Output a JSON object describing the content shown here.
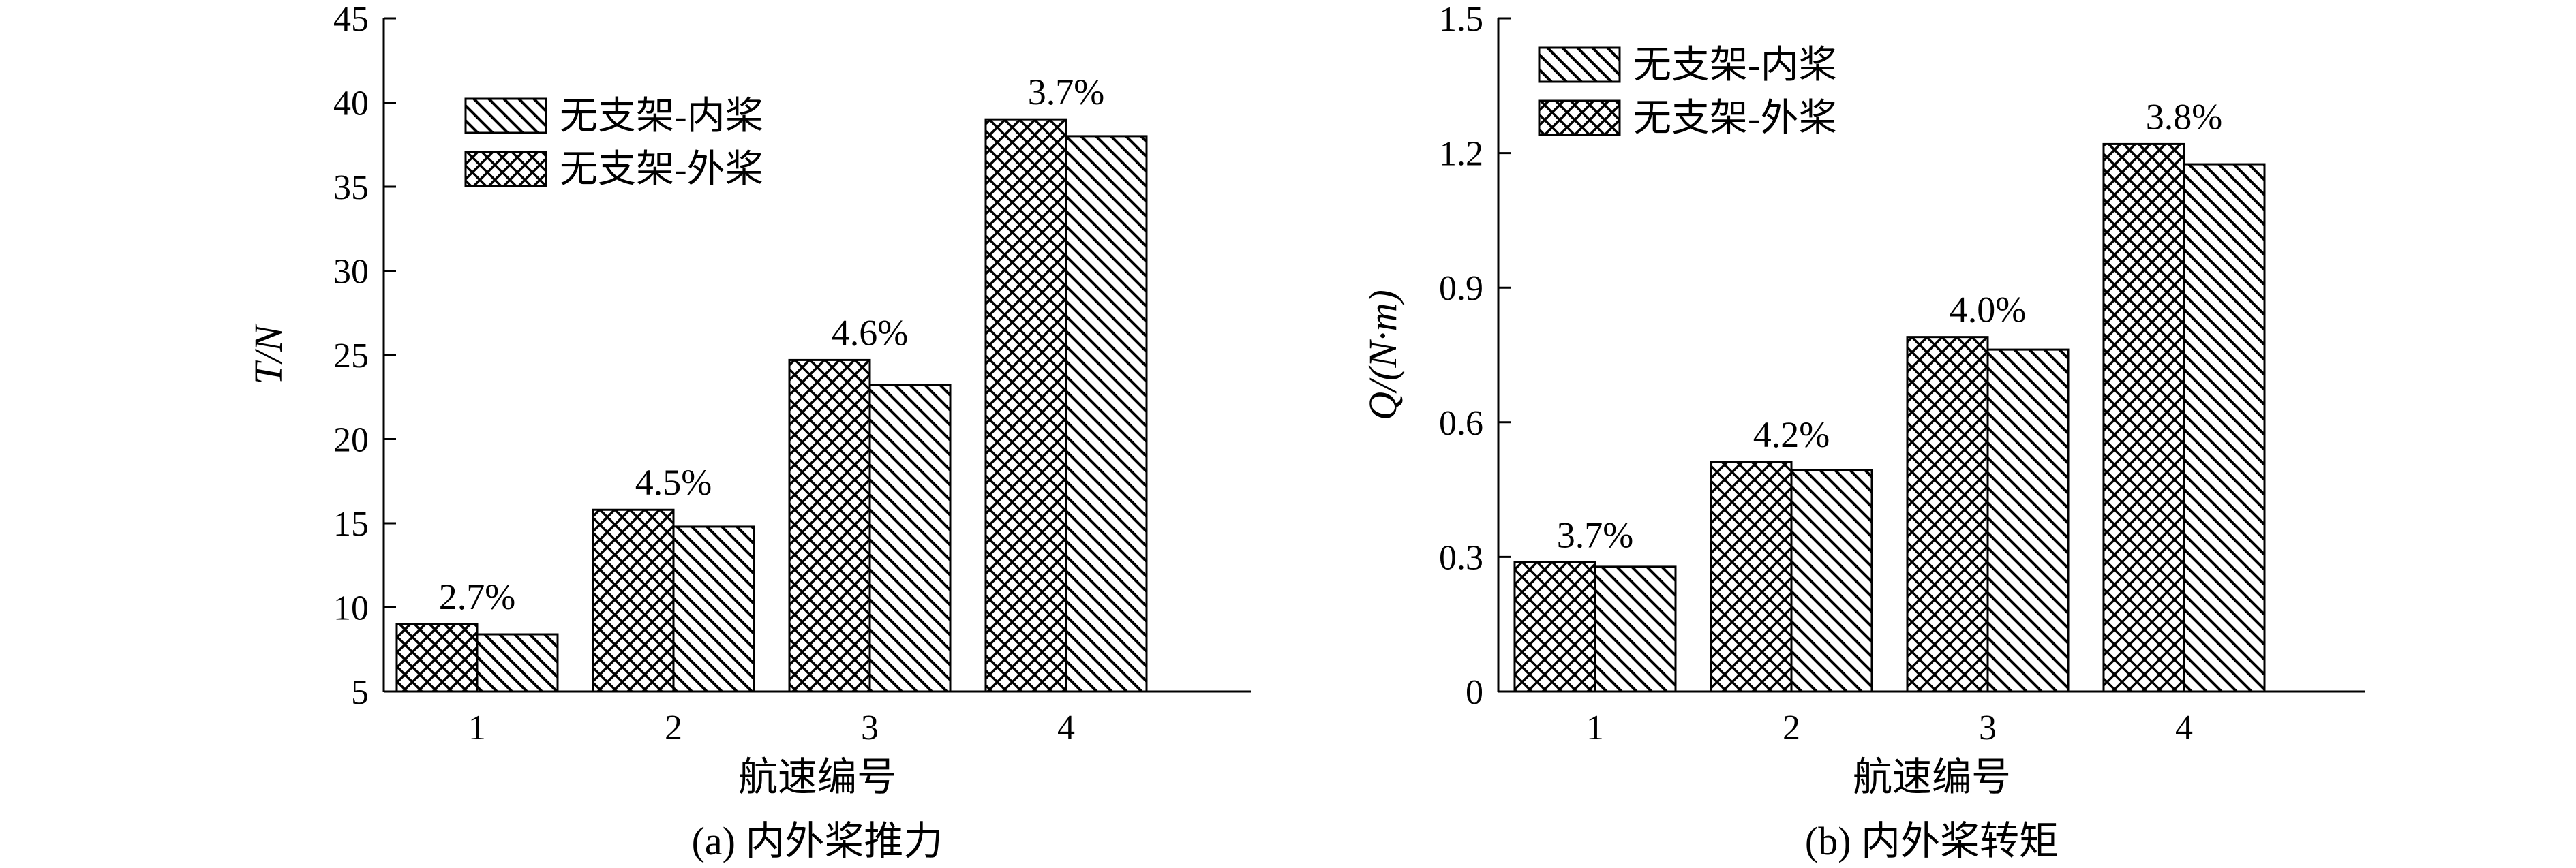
{
  "chart_data": [
    {
      "type": "bar",
      "title": "(a) 内外桨推力",
      "xlabel": "航速编号",
      "ylabel": "T/N",
      "ylim": [
        5,
        45
      ],
      "yticks": [
        5,
        10,
        15,
        20,
        25,
        30,
        35,
        40,
        45
      ],
      "categories": [
        "1",
        "2",
        "3",
        "4"
      ],
      "series": [
        {
          "name": "无支架-外桨",
          "values": [
            9.0,
            15.8,
            24.7,
            39.0
          ],
          "pattern": "crosshatch"
        },
        {
          "name": "无支架-内桨",
          "values": [
            8.4,
            14.8,
            23.2,
            38.0
          ],
          "pattern": "diagonal"
        }
      ],
      "annotations": [
        "2.7%",
        "4.5%",
        "4.6%",
        "3.7%"
      ],
      "legend": {
        "entries": [
          "无支架-内桨",
          "无支架-外桨"
        ],
        "position": "top-left"
      }
    },
    {
      "type": "bar",
      "title": "(b) 内外桨转矩",
      "xlabel": "航速编号",
      "ylabel": "Q/(N·m)",
      "ylim": [
        0,
        1.5
      ],
      "yticks": [
        "0",
        "0.3",
        "0.6",
        "0.9",
        "1.2",
        "1.5"
      ],
      "categories": [
        "1",
        "2",
        "3",
        "4"
      ],
      "series": [
        {
          "name": "无支架-外桨",
          "values": [
            0.288,
            0.512,
            0.79,
            1.22
          ],
          "pattern": "crosshatch"
        },
        {
          "name": "无支架-内桨",
          "values": [
            0.278,
            0.494,
            0.762,
            1.175
          ],
          "pattern": "diagonal"
        }
      ],
      "annotations": [
        "3.7%",
        "4.2%",
        "4.0%",
        "3.8%"
      ],
      "legend": {
        "entries": [
          "无支架-内桨",
          "无支架-外桨"
        ],
        "position": "top-left"
      }
    }
  ]
}
